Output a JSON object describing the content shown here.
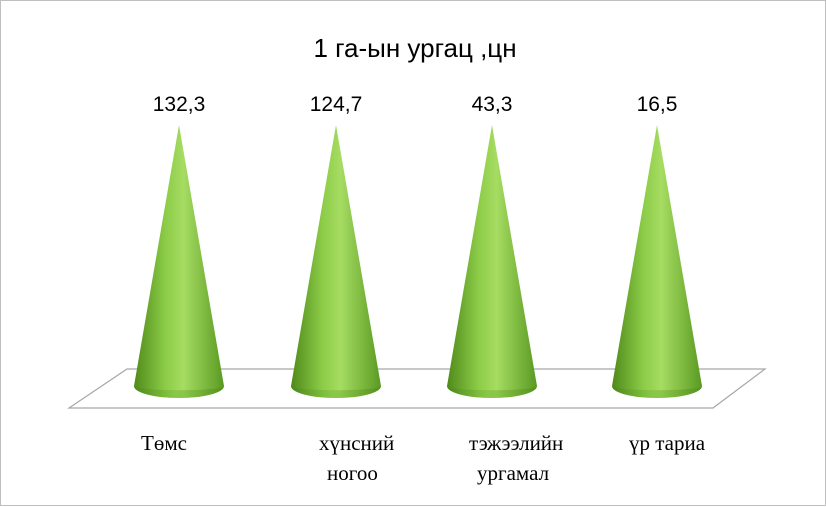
{
  "chart_data": {
    "type": "bar",
    "shape": "cone",
    "title": "1 га-ын ургац ,цн",
    "categories": [
      "Төмс",
      "хүнсний ногоо",
      "тэжээлийн ургамал",
      "үр тариа"
    ],
    "category_lines": [
      [
        "Төмс"
      ],
      [
        "хүнсний",
        "ногоо"
      ],
      [
        "тэжээлийн",
        "ургамал"
      ],
      [
        "үр тариа"
      ]
    ],
    "values": [
      132.3,
      124.7,
      43.3,
      16.5
    ],
    "data_labels": [
      "132,3",
      "124,7",
      "43,3",
      "16,5"
    ],
    "series_color": "#7dbb3c",
    "legend": "none",
    "grid": false
  }
}
